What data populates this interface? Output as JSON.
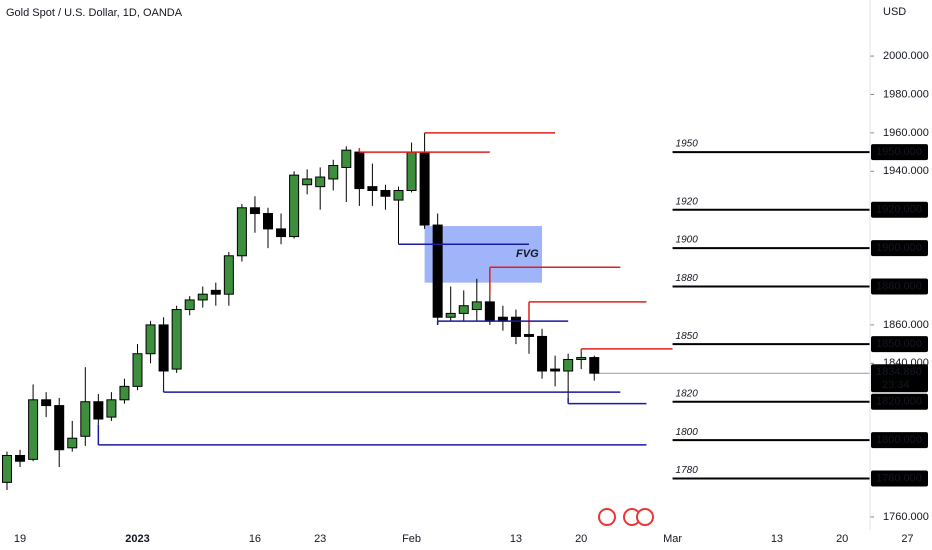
{
  "chart_data": {
    "type": "candlestick",
    "title": "Gold Spot / U.S. Dollar, 1D, OANDA",
    "currency": "USD",
    "up_color": "#3d8f3d",
    "down_color": "#000000",
    "categories": [
      null,
      "19",
      null,
      null,
      null,
      null,
      null,
      null,
      null,
      null,
      "2023",
      null,
      null,
      null,
      null,
      null,
      null,
      null,
      null,
      "16",
      null,
      null,
      null,
      null,
      "23",
      null,
      null,
      null,
      null,
      null,
      null,
      "Feb",
      null,
      null,
      null,
      null,
      null,
      null,
      null,
      "13",
      null,
      null,
      null,
      null,
      "20",
      null,
      null,
      null,
      null,
      null,
      null,
      "Mar",
      null,
      null,
      null,
      null,
      null,
      null,
      null,
      "13",
      null,
      null,
      null,
      null,
      "20",
      null,
      null,
      null,
      null,
      "27"
    ],
    "open": [
      1778,
      1792,
      1790,
      1821,
      1818,
      1796,
      1802,
      1820,
      1812,
      1821,
      1828,
      1845,
      1860,
      1837,
      1868,
      1873,
      1878,
      1876,
      1896,
      1921,
      1918,
      1910,
      1906,
      1933,
      1932,
      1936,
      1942,
      1950,
      1932,
      1930,
      1925,
      1930,
      1950,
      1912,
      1864,
      1866,
      1868,
      1872,
      1864,
      1864,
      1855,
      1854,
      1837,
      1836,
      1842,
      1843,
      null,
      null,
      null,
      null,
      null,
      null,
      null,
      null,
      null,
      null,
      null,
      null,
      null,
      null,
      null,
      null,
      null,
      null,
      null,
      null,
      null,
      null,
      null,
      null
    ],
    "high": [
      1794,
      1795,
      1829,
      1825,
      1822,
      1810,
      1838,
      1824,
      1825,
      1832,
      1850,
      1862,
      1864,
      1870,
      1875,
      1880,
      1882,
      1898,
      1923,
      1927,
      1921,
      1918,
      1940,
      1941,
      1942,
      1946,
      1953,
      1952,
      1944,
      1933,
      1932,
      1955,
      1960,
      1918,
      1880,
      1878,
      1884,
      1876,
      1870,
      1868,
      1860,
      1858,
      1844,
      1845,
      1846,
      1844,
      null,
      null,
      null,
      null,
      null,
      null,
      null,
      null,
      null,
      null,
      null,
      null,
      null,
      null,
      null,
      null,
      null,
      null,
      null,
      null,
      null,
      null,
      null,
      null
    ],
    "low": [
      1774,
      1786,
      1789,
      1812,
      1786,
      1794,
      1797,
      1808,
      1810,
      1819,
      1826,
      1840,
      1826,
      1835,
      1865,
      1869,
      1870,
      1870,
      1893,
      1908,
      1900,
      1902,
      1905,
      1928,
      1920,
      1930,
      1924,
      1922,
      1922,
      1920,
      1902,
      1929,
      1910,
      1860,
      1862,
      1862,
      1862,
      1860,
      1857,
      1850,
      1845,
      1832,
      1828,
      1822,
      1837,
      1831,
      null,
      null,
      null,
      null,
      null,
      null,
      null,
      null,
      null,
      null,
      null,
      null,
      null,
      null,
      null,
      null,
      null,
      null,
      null,
      null,
      null,
      null,
      null,
      null
    ],
    "close": [
      1792,
      1789,
      1821,
      1818,
      1795,
      1801,
      1820,
      1811,
      1821,
      1828,
      1845,
      1860,
      1836,
      1868,
      1873,
      1876,
      1876,
      1896,
      1921,
      1918,
      1910,
      1906,
      1938,
      1936,
      1937,
      1943,
      1951,
      1931,
      1930,
      1927,
      1930,
      1950,
      1912,
      1864,
      1866,
      1870,
      1872,
      1862,
      1862,
      1854,
      1854,
      1836,
      1836,
      1842,
      1843,
      1834.86,
      null,
      null,
      null,
      null,
      null,
      null,
      null,
      null,
      null,
      null,
      null,
      null,
      null,
      null,
      null,
      null,
      null,
      null,
      null,
      null,
      null,
      null,
      null,
      null
    ],
    "ylim": [
      1753.2,
      2029.2
    ],
    "yticks": [
      {
        "value": 2000,
        "label": "2000.000"
      },
      {
        "value": 1980,
        "label": "1980.000"
      },
      {
        "value": 1960,
        "label": "1960.000"
      },
      {
        "value": 1940,
        "label": "1940.000"
      },
      {
        "value": 1860,
        "label": "1860.000"
      },
      {
        "value": 1840,
        "label": "1840.000"
      },
      {
        "value": 1760,
        "label": "1760.000"
      }
    ],
    "lines": [
      {
        "color": "#e0201b",
        "value": 1960,
        "start": 32,
        "end": 42,
        "anchor": "high"
      },
      {
        "color": "#e0201b",
        "value": 1950,
        "start": 27,
        "end": 37,
        "anchor": "high"
      },
      {
        "color": "#e0201b",
        "value": 1890,
        "start": 37,
        "end": 47,
        "anchor": "high"
      },
      {
        "color": "#e0201b",
        "value": 1872,
        "start": 40,
        "end": 49,
        "anchor": "high"
      },
      {
        "color": "#e0201b",
        "value": 1847.5,
        "start": 44,
        "end": 51,
        "anchor": "high"
      },
      {
        "color": "#1a1aa0",
        "value": 1902,
        "start": 30,
        "end": 40,
        "anchor": "low"
      },
      {
        "color": "#1a1aa0",
        "value": 1862,
        "start": 33,
        "end": 43,
        "anchor": "low"
      },
      {
        "color": "#1a1aa0",
        "value": 1825,
        "start": 12,
        "end": 47,
        "anchor": "low"
      },
      {
        "color": "#1a1aa0",
        "value": 1797.5,
        "start": 7,
        "end": 49,
        "anchor": "low"
      },
      {
        "color": "#1a1aa0",
        "value": 1819,
        "start": 43,
        "end": 49,
        "anchor": "low"
      }
    ],
    "zone": {
      "label": "FVG",
      "top": 1911.5,
      "bottom": 1882,
      "start": 32,
      "end": 41,
      "color": "#8fa8f8"
    },
    "levels": [
      {
        "value": 1950,
        "label": "1950",
        "axis_label": "1950.000"
      },
      {
        "value": 1920,
        "label": "1920",
        "axis_label": "1920.000"
      },
      {
        "value": 1900,
        "label": "1900",
        "axis_label": "1900.000"
      },
      {
        "value": 1880,
        "label": "1880",
        "axis_label": "1880.000"
      },
      {
        "value": 1850,
        "label": "1850",
        "axis_label": "1850.000"
      },
      {
        "value": 1820,
        "label": "1820",
        "axis_label": "1820.000"
      },
      {
        "value": 1800,
        "label": "1800",
        "axis_label": "1800.000"
      },
      {
        "value": 1780,
        "label": "1780",
        "axis_label": "1780.000"
      }
    ],
    "level_start": 51,
    "last_price": {
      "value": 1834.86,
      "label": "1834.860",
      "countdown": "23:34"
    }
  }
}
